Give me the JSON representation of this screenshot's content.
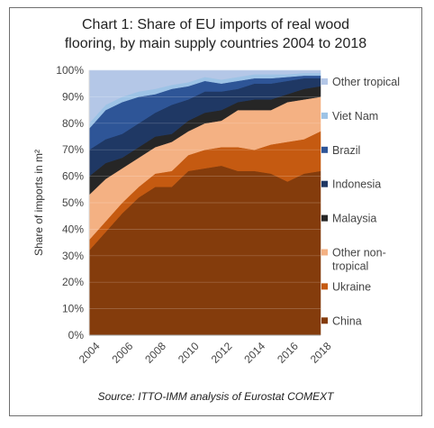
{
  "chart_data": {
    "type": "area",
    "stacked": true,
    "title_lines": [
      "Chart 1: Share of EU imports of real wood",
      "flooring, by main supply countries 2004 to 2018"
    ],
    "ylabel": "Share of imports in m²",
    "source": "Source: ITTO-IMM analysis of Eurostat COMEXT",
    "x": [
      2004,
      2005,
      2006,
      2007,
      2008,
      2009,
      2010,
      2011,
      2012,
      2013,
      2014,
      2015,
      2016,
      2017,
      2018
    ],
    "x_ticks": [
      2004,
      2006,
      2008,
      2010,
      2012,
      2014,
      2016,
      2018
    ],
    "ylim": [
      0,
      100
    ],
    "y_ticks": [
      0,
      10,
      20,
      30,
      40,
      50,
      60,
      70,
      80,
      90,
      100
    ],
    "y_tick_labels": [
      "0%",
      "10%",
      "20%",
      "30%",
      "40%",
      "50%",
      "60%",
      "70%",
      "80%",
      "90%",
      "100%"
    ],
    "legend_position": "right",
    "series": [
      {
        "name": "China",
        "color": "#843c0c",
        "values": [
          32,
          39,
          46,
          52,
          56,
          56,
          62,
          63,
          64,
          62,
          62,
          61,
          58,
          61,
          62
        ]
      },
      {
        "name": "Ukraine",
        "color": "#c55a11",
        "values": [
          4,
          4,
          4,
          4,
          5,
          6,
          6,
          7,
          7,
          9,
          8,
          11,
          15,
          13,
          15
        ]
      },
      {
        "name": "Other non-tropical",
        "color": "#f4b183",
        "values": [
          17,
          16,
          13,
          11,
          10,
          11,
          9,
          10,
          10,
          14,
          15,
          13,
          15,
          15,
          13
        ]
      },
      {
        "name": "Malaysia",
        "color": "#262626",
        "values": [
          7,
          6,
          4,
          4,
          4,
          3,
          4,
          4,
          4,
          3,
          4,
          4,
          3,
          4,
          4
        ]
      },
      {
        "name": "Indonesia",
        "color": "#1f3864",
        "values": [
          10,
          9,
          9,
          9,
          9,
          11,
          8,
          8,
          7,
          5,
          6,
          6,
          5,
          4,
          3
        ]
      },
      {
        "name": "Brazil",
        "color": "#2e5597",
        "values": [
          8,
          11,
          12,
          10,
          7,
          6,
          5,
          4,
          3,
          3,
          2,
          2,
          1.5,
          1,
          1
        ]
      },
      {
        "name": "Viet Nam",
        "color": "#9dc3e6",
        "values": [
          2,
          2,
          2,
          2,
          2,
          1.5,
          1.5,
          1.5,
          1.5,
          1.5,
          1.5,
          1.5,
          1,
          1,
          1
        ]
      },
      {
        "name": "Other tropical",
        "color": "#b4c7e7",
        "values": [
          20,
          13,
          10,
          8,
          7,
          5.5,
          4.5,
          2.5,
          3.5,
          2.5,
          1.5,
          1.5,
          1.5,
          1,
          1
        ]
      }
    ],
    "legend_order": [
      {
        "lines": [
          "Other tropical"
        ],
        "series": 7
      },
      {
        "lines": [
          "Viet Nam"
        ],
        "series": 6
      },
      {
        "lines": [
          "Brazil"
        ],
        "series": 5
      },
      {
        "lines": [
          "Indonesia"
        ],
        "series": 4
      },
      {
        "lines": [
          "Malaysia"
        ],
        "series": 3
      },
      {
        "lines": [
          "Other non-",
          "tropical"
        ],
        "series": 2
      },
      {
        "lines": [
          "Ukraine"
        ],
        "series": 1
      },
      {
        "lines": [
          "China"
        ],
        "series": 0
      }
    ]
  }
}
